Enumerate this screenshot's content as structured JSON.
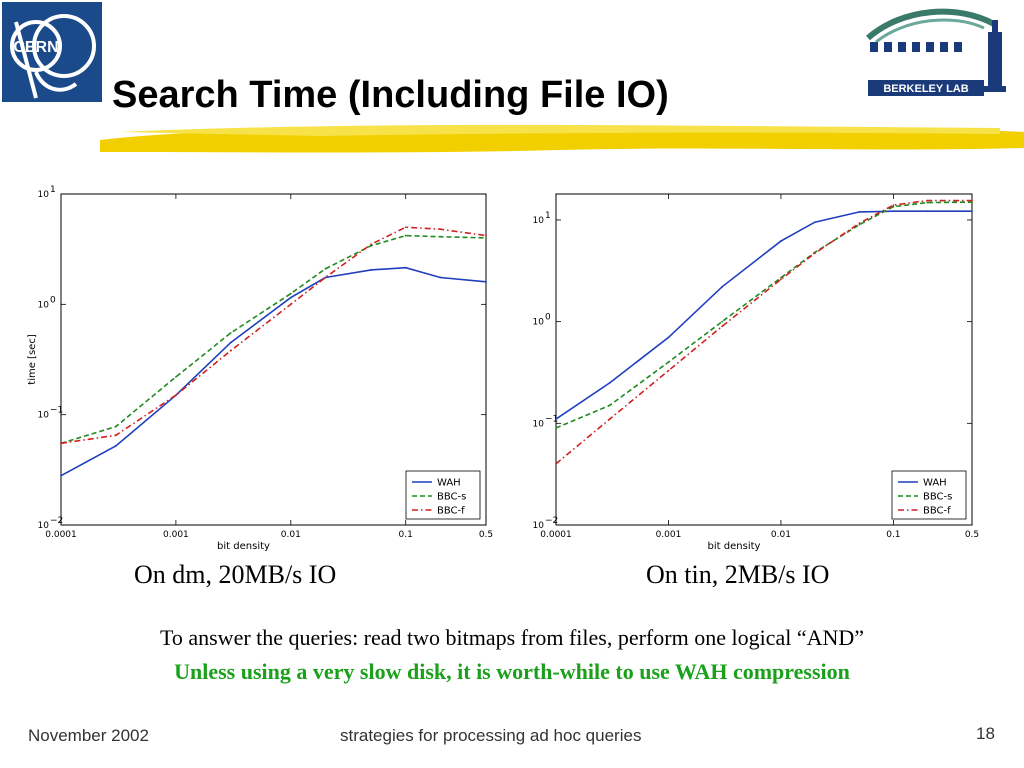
{
  "slide": {
    "title": "Search Time (Including File IO)",
    "logo_right_text": "BERKELEY LAB",
    "caption_left": "On dm, 20MB/s IO",
    "caption_right": "On tin, 2MB/s IO",
    "body_line_1": "To answer the queries: read two bitmaps from files, perform one logical “AND”",
    "body_line_2": "Unless using a very slow disk, it is worth-while to use WAH compression",
    "footer_date": "November 2002",
    "footer_topic": "strategies for processing ad hoc queries",
    "page_number": "18"
  },
  "logos": {
    "left_text": "CERN",
    "left_icon": "cern-logo-icon",
    "right_icon": "berkeley-lab-logo-icon",
    "colors": {
      "cern_blue": "#1a4a8a",
      "lbl_green": "#3a7a6a",
      "lbl_blue": "#1a3a7a",
      "title_brush": "#f2d000"
    }
  },
  "chart_data": [
    {
      "type": "line",
      "xlabel": "bit density",
      "ylabel": "time [sec]",
      "xscale": "log",
      "yscale": "log",
      "xlim": [
        0.0001,
        0.5
      ],
      "ylim": [
        0.01,
        10
      ],
      "xticks": [
        {
          "value": 0.0001,
          "label": "0.0001"
        },
        {
          "value": 0.001,
          "label": "0.001"
        },
        {
          "value": 0.01,
          "label": "0.01"
        },
        {
          "value": 0.1,
          "label": "0.1"
        },
        {
          "value": 0.5,
          "label": "0.5"
        }
      ],
      "yticks": [
        {
          "value": 0.01,
          "base": "10",
          "exp": "−2"
        },
        {
          "value": 0.1,
          "base": "10",
          "exp": "−1"
        },
        {
          "value": 1,
          "base": "10",
          "exp": "0"
        },
        {
          "value": 10,
          "base": "10",
          "exp": "1"
        }
      ],
      "legend_position": "bottom-right",
      "series": [
        {
          "name": "WAH",
          "color": "#1f3fbf",
          "dash": "solid",
          "x": [
            0.0001,
            0.0003,
            0.001,
            0.003,
            0.01,
            0.02,
            0.05,
            0.1,
            0.2,
            0.5
          ],
          "y": [
            0.028,
            0.052,
            0.15,
            0.45,
            1.15,
            1.75,
            2.05,
            2.15,
            1.75,
            1.6
          ]
        },
        {
          "name": "BBC-s",
          "color": "#1f8a1f",
          "dash": "dashed",
          "x": [
            0.0001,
            0.0003,
            0.001,
            0.003,
            0.01,
            0.02,
            0.05,
            0.1,
            0.2,
            0.5
          ],
          "y": [
            0.055,
            0.078,
            0.22,
            0.55,
            1.25,
            2.1,
            3.4,
            4.2,
            4.1,
            4.0
          ]
        },
        {
          "name": "BBC-f",
          "color": "#d02020",
          "dash": "dashdot",
          "x": [
            0.0001,
            0.0003,
            0.001,
            0.003,
            0.01,
            0.02,
            0.05,
            0.1,
            0.2,
            0.5
          ],
          "y": [
            0.055,
            0.065,
            0.15,
            0.38,
            1.0,
            1.75,
            3.5,
            5.0,
            4.8,
            4.2
          ]
        }
      ]
    },
    {
      "type": "line",
      "xlabel": "bit density",
      "ylabel": "",
      "xscale": "log",
      "yscale": "log",
      "xlim": [
        0.0001,
        0.5
      ],
      "ylim": [
        0.01,
        18
      ],
      "xticks": [
        {
          "value": 0.0001,
          "label": "0.0001"
        },
        {
          "value": 0.001,
          "label": "0.001"
        },
        {
          "value": 0.01,
          "label": "0.01"
        },
        {
          "value": 0.1,
          "label": "0.1"
        },
        {
          "value": 0.5,
          "label": "0.5"
        }
      ],
      "yticks": [
        {
          "value": 0.01,
          "base": "10",
          "exp": "−2"
        },
        {
          "value": 0.1,
          "base": "10",
          "exp": "−1"
        },
        {
          "value": 1,
          "base": "10",
          "exp": "0"
        },
        {
          "value": 10,
          "base": "10",
          "exp": "1"
        }
      ],
      "legend_position": "bottom-right",
      "series": [
        {
          "name": "WAH",
          "color": "#1f3fbf",
          "dash": "solid",
          "x": [
            0.0001,
            0.0003,
            0.001,
            0.003,
            0.01,
            0.02,
            0.05,
            0.1,
            0.2,
            0.5
          ],
          "y": [
            0.11,
            0.25,
            0.7,
            2.2,
            6.2,
            9.5,
            12.0,
            12.2,
            12.2,
            12.2
          ]
        },
        {
          "name": "BBC-s",
          "color": "#1f8a1f",
          "dash": "dashed",
          "x": [
            0.0001,
            0.0003,
            0.001,
            0.003,
            0.01,
            0.02,
            0.05,
            0.1,
            0.2,
            0.5
          ],
          "y": [
            0.09,
            0.15,
            0.4,
            1.0,
            2.7,
            4.8,
            9.0,
            13.5,
            14.8,
            15.0
          ]
        },
        {
          "name": "BBC-f",
          "color": "#d02020",
          "dash": "dashdot",
          "x": [
            0.0001,
            0.0003,
            0.001,
            0.003,
            0.01,
            0.02,
            0.05,
            0.1,
            0.2,
            0.5
          ],
          "y": [
            0.04,
            0.11,
            0.33,
            0.9,
            2.6,
            4.7,
            9.3,
            14.0,
            15.5,
            15.5
          ]
        }
      ]
    }
  ]
}
